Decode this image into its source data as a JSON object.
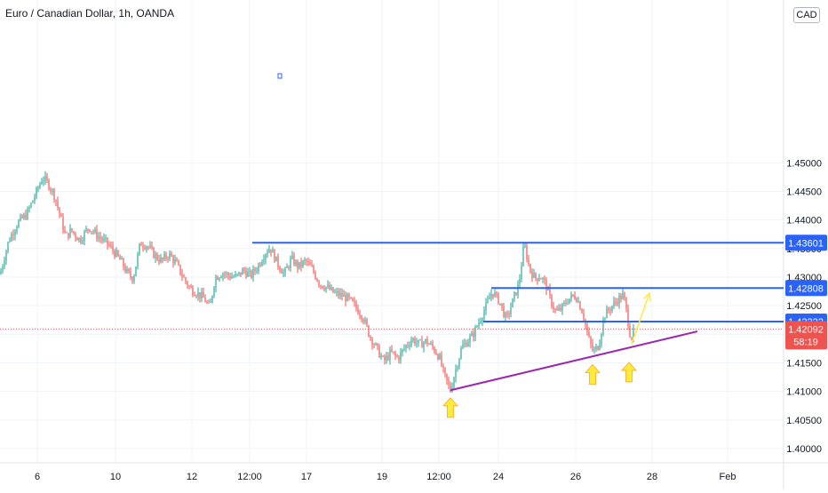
{
  "header": {
    "title": "Euro / Canadian Dollar, 1h, OANDA",
    "currency": "CAD"
  },
  "colors": {
    "up": "#26a69a",
    "down": "#ef5350",
    "level_line": "#2962ff",
    "trend_line": "#9c27b0",
    "arrow": "#ffeb3b",
    "current_price": "#ef5350",
    "grid": "#f0f3fa"
  },
  "chart_data": {
    "type": "candlestick",
    "title": "Euro / Canadian Dollar, 1h, OANDA",
    "ylim": [
      1.3975,
      1.4785
    ],
    "y_ticks": [
      "1.40000",
      "1.40500",
      "1.41000",
      "1.41500",
      "1.42000",
      "1.42500",
      "1.43000",
      "1.43500",
      "1.44000",
      "1.44500",
      "1.45000"
    ],
    "x_ticks": [
      "6",
      "10",
      "12",
      "12:00",
      "17",
      "19",
      "12:00",
      "24",
      "26",
      "28",
      "Feb"
    ],
    "close_path": [
      [
        0,
        1.4305
      ],
      [
        10,
        1.4365
      ],
      [
        20,
        1.4395
      ],
      [
        30,
        1.441
      ],
      [
        40,
        1.4445
      ],
      [
        48,
        1.4475
      ],
      [
        55,
        1.4462
      ],
      [
        62,
        1.444
      ],
      [
        68,
        1.4405
      ],
      [
        74,
        1.437
      ],
      [
        80,
        1.4382
      ],
      [
        90,
        1.4365
      ],
      [
        100,
        1.4388
      ],
      [
        110,
        1.4372
      ],
      [
        120,
        1.436
      ],
      [
        128,
        1.4345
      ],
      [
        136,
        1.4328
      ],
      [
        144,
        1.4305
      ],
      [
        150,
        1.4298
      ],
      [
        158,
        1.436
      ],
      [
        166,
        1.4355
      ],
      [
        174,
        1.4338
      ],
      [
        182,
        1.4328
      ],
      [
        190,
        1.434
      ],
      [
        198,
        1.4325
      ],
      [
        206,
        1.43
      ],
      [
        214,
        1.428
      ],
      [
        222,
        1.4272
      ],
      [
        230,
        1.4262
      ],
      [
        236,
        1.4245
      ],
      [
        242,
        1.4298
      ],
      [
        250,
        1.4308
      ],
      [
        258,
        1.4302
      ],
      [
        266,
        1.43
      ],
      [
        274,
        1.4312
      ],
      [
        282,
        1.4302
      ],
      [
        290,
        1.4318
      ],
      [
        298,
        1.4342
      ],
      [
        304,
        1.4352
      ],
      [
        312,
        1.4325
      ],
      [
        320,
        1.4305
      ],
      [
        328,
        1.4332
      ],
      [
        336,
        1.4318
      ],
      [
        344,
        1.4328
      ],
      [
        352,
        1.4312
      ],
      [
        360,
        1.4288
      ],
      [
        368,
        1.4282
      ],
      [
        376,
        1.4272
      ],
      [
        384,
        1.4268
      ],
      [
        392,
        1.4262
      ],
      [
        400,
        1.4248
      ],
      [
        408,
        1.4232
      ],
      [
        416,
        1.4198
      ],
      [
        424,
        1.4175
      ],
      [
        432,
        1.4152
      ],
      [
        440,
        1.4168
      ],
      [
        448,
        1.4158
      ],
      [
        456,
        1.4178
      ],
      [
        464,
        1.4192
      ],
      [
        472,
        1.4182
      ],
      [
        480,
        1.4188
      ],
      [
        488,
        1.4175
      ],
      [
        494,
        1.4162
      ],
      [
        500,
        1.4128
      ],
      [
        507,
        1.4102
      ],
      [
        514,
        1.4145
      ],
      [
        520,
        1.4178
      ],
      [
        526,
        1.4188
      ],
      [
        532,
        1.4198
      ],
      [
        538,
        1.4218
      ],
      [
        546,
        1.4245
      ],
      [
        554,
        1.4275
      ],
      [
        562,
        1.4258
      ],
      [
        570,
        1.4225
      ],
      [
        578,
        1.4262
      ],
      [
        584,
        1.4288
      ],
      [
        590,
        1.4358
      ],
      [
        596,
        1.4315
      ],
      [
        602,
        1.4298
      ],
      [
        608,
        1.4302
      ],
      [
        614,
        1.4288
      ],
      [
        620,
        1.4258
      ],
      [
        626,
        1.4238
      ],
      [
        632,
        1.4245
      ],
      [
        640,
        1.4262
      ],
      [
        648,
        1.4268
      ],
      [
        656,
        1.4238
      ],
      [
        662,
        1.4195
      ],
      [
        668,
        1.4168
      ],
      [
        674,
        1.4182
      ],
      [
        680,
        1.4232
      ],
      [
        688,
        1.4248
      ],
      [
        696,
        1.4262
      ],
      [
        702,
        1.4268
      ],
      [
        706,
        1.4232
      ],
      [
        710,
        1.4192
      ],
      [
        714,
        1.4208
      ]
    ],
    "levels": [
      {
        "price": 1.43601,
        "label": "1.43601",
        "x_start": 284
      },
      {
        "price": 1.42808,
        "label": "1.42808",
        "x_start": 553
      },
      {
        "price": 1.42222,
        "label": "1.42222",
        "x_start": 544
      }
    ],
    "current_price": {
      "price": 1.42092,
      "label": "1.42092",
      "countdown": "58:19"
    },
    "trendline": {
      "from": [
        507,
        1.4102
      ],
      "to": [
        785,
        1.4205
      ]
    },
    "projection_arrow": {
      "from": [
        711,
        1.4183
      ],
      "to": [
        731,
        1.4272
      ]
    },
    "arrow_markers": [
      {
        "x": 507,
        "price": 1.4095
      },
      {
        "x": 667,
        "price": 1.4153
      },
      {
        "x": 708,
        "price": 1.4157
      }
    ]
  }
}
